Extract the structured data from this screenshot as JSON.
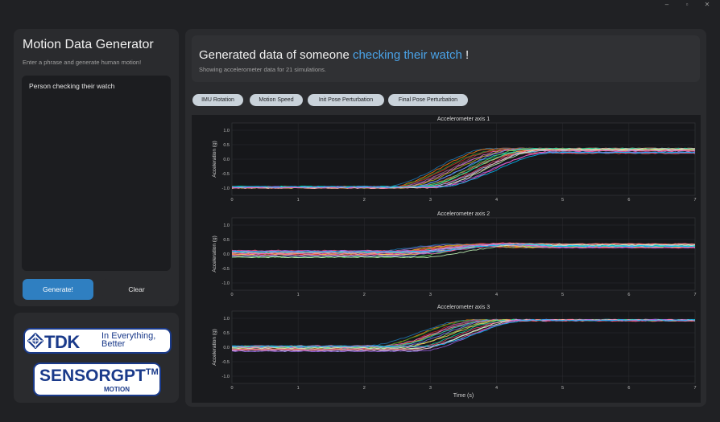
{
  "window": {
    "controls": [
      "–",
      "▫",
      "✕"
    ]
  },
  "sidebar": {
    "title": "Motion Data Generator",
    "subtitle": "Enter a phrase and generate human motion!",
    "prompt_value": "Person checking their watch",
    "generate_label": "Generate!",
    "clear_label": "Clear"
  },
  "logos": {
    "tdk": {
      "name": "TDK",
      "tagline": "In Everything, Better"
    },
    "sensorgpt": {
      "name": "SENSORGPT",
      "tm": "TM",
      "sub": "MOTION"
    }
  },
  "header": {
    "prefix": "Generated data of someone ",
    "activity": "checking their watch",
    "suffix": " !",
    "description": "Showing accelerometer data for 21 simulations."
  },
  "tabs": [
    "IMU Rotation",
    "Motion Speed",
    "Init Pose Perturbation",
    "Final Pose Perturbation"
  ],
  "colors": {
    "accent": "#4aa3e8",
    "button_primary": "#2f7fc1",
    "tab_bg": "#c9d2da"
  },
  "chart_data": [
    {
      "type": "line",
      "title": "Accelerometer axis 1",
      "ylabel": "Acceleration (g)",
      "xlabel": "",
      "xlim": [
        0,
        7
      ],
      "ylim": [
        -1.25,
        1.25
      ],
      "xticks": [
        "0",
        "1",
        "2",
        "3",
        "4",
        "5",
        "6",
        "7"
      ],
      "yticks": [
        "1.0",
        "0.5",
        "0.0",
        "-0.5",
        "-1.0"
      ],
      "n_series": 21,
      "start_value_range": [
        -1.0,
        -0.95
      ],
      "end_value_range": [
        0.2,
        0.38
      ],
      "transition_start_range_s": [
        2.3,
        3.1
      ],
      "transition_end_range_s": [
        3.9,
        4.9
      ]
    },
    {
      "type": "line",
      "title": "Accelerometer axis 2",
      "ylabel": "Acceleration (g)",
      "xlabel": "",
      "xlim": [
        0,
        7
      ],
      "ylim": [
        -1.25,
        1.25
      ],
      "xticks": [
        "0",
        "1",
        "2",
        "3",
        "4",
        "5",
        "6",
        "7"
      ],
      "yticks": [
        "1.0",
        "0.5",
        "0.0",
        "-0.5",
        "-1.0"
      ],
      "n_series": 21,
      "start_value_range": [
        -0.12,
        0.12
      ],
      "end_value_range": [
        0.22,
        0.35
      ],
      "peak_value": 0.5,
      "transition_start_range_s": [
        2.3,
        3.1
      ],
      "transition_end_range_s": [
        3.9,
        4.9
      ]
    },
    {
      "type": "line",
      "title": "Accelerometer axis 3",
      "ylabel": "Acceleration (g)",
      "xlabel": "Time (s)",
      "xlim": [
        0,
        7
      ],
      "ylim": [
        -1.25,
        1.25
      ],
      "xticks": [
        "0",
        "1",
        "2",
        "3",
        "4",
        "5",
        "6",
        "7"
      ],
      "yticks": [
        "1.0",
        "0.5",
        "0.0",
        "-0.5",
        "-1.0"
      ],
      "n_series": 21,
      "start_value_range": [
        -0.15,
        0.05
      ],
      "end_value_range": [
        0.9,
        0.95
      ],
      "transition_start_range_s": [
        2.0,
        2.9
      ],
      "transition_end_range_s": [
        3.6,
        4.5
      ]
    }
  ]
}
